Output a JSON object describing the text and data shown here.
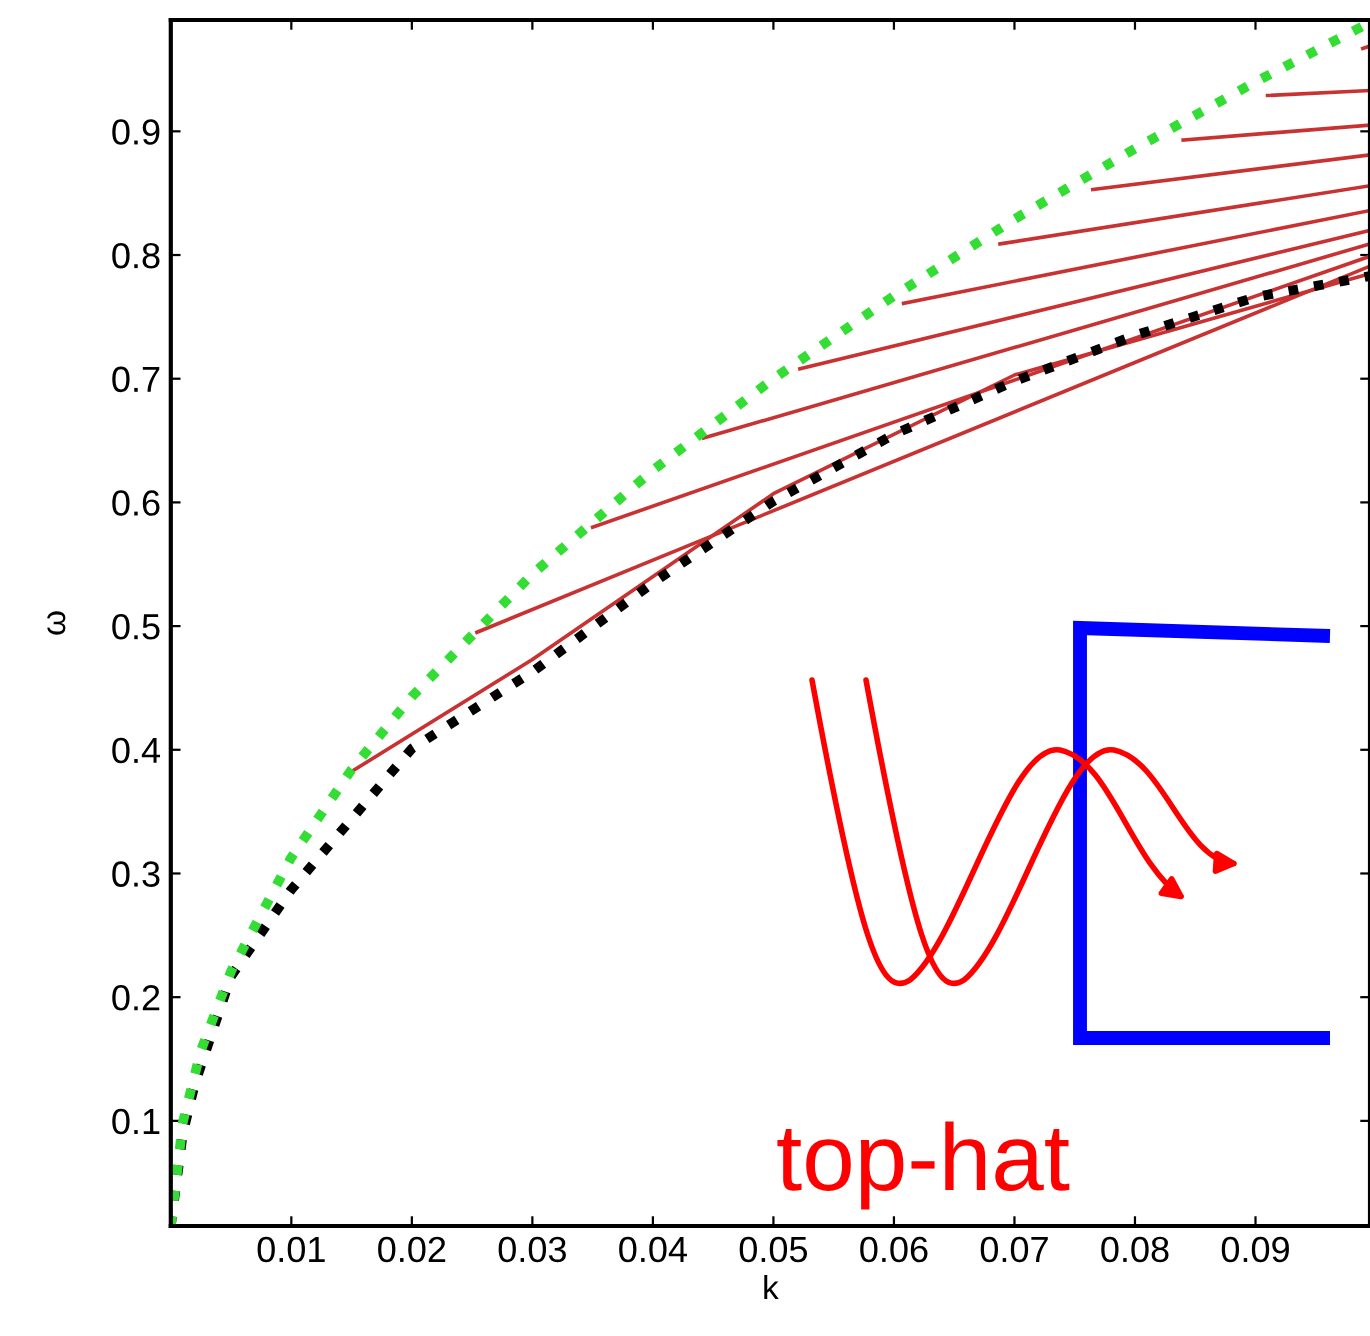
{
  "chart_data": {
    "type": "line",
    "xlabel": "k",
    "ylabel": "ω",
    "xlim": [
      0,
      0.0995
    ],
    "ylim": [
      0.015,
      0.99
    ],
    "xticks": [
      0.01,
      0.02,
      0.03,
      0.04,
      0.05,
      0.06,
      0.07,
      0.08,
      0.09
    ],
    "yticks": [
      0.1,
      0.2,
      0.3,
      0.4,
      0.5,
      0.6,
      0.7,
      0.8,
      0.9
    ],
    "grid": false,
    "legend": false,
    "annotations": [
      "top-hat"
    ],
    "series": [
      {
        "color": "#c83232",
        "line_style": "solid",
        "x": [
          0.0151,
          0.03,
          0.05,
          0.07,
          0.0995
        ],
        "values": [
          0.383,
          0.473,
          0.607,
          0.703,
          0.785
        ]
      },
      {
        "color": "#c83232",
        "line_style": "solid",
        "x": [
          0.0254,
          0.0995
        ],
        "values": [
          0.495,
          0.791
        ]
      },
      {
        "color": "#c83232",
        "line_style": "solid",
        "x": [
          0.035,
          0.0995
        ],
        "values": [
          0.58,
          0.799
        ]
      },
      {
        "color": "#c83232",
        "line_style": "solid",
        "x": [
          0.0442,
          0.0995
        ],
        "values": [
          0.652,
          0.809
        ]
      },
      {
        "color": "#c83232",
        "line_style": "solid",
        "x": [
          0.0522,
          0.0995
        ],
        "values": [
          0.708,
          0.82
        ]
      },
      {
        "color": "#c83232",
        "line_style": "solid",
        "x": [
          0.0608,
          0.0995
        ],
        "values": [
          0.761,
          0.836
        ]
      },
      {
        "color": "#c83232",
        "line_style": "solid",
        "x": [
          0.0688,
          0.0995
        ],
        "values": [
          0.809,
          0.856
        ]
      },
      {
        "color": "#c83232",
        "line_style": "solid",
        "x": [
          0.0765,
          0.0995
        ],
        "values": [
          0.853,
          0.881
        ]
      },
      {
        "color": "#c83232",
        "line_style": "solid",
        "x": [
          0.084,
          0.0995
        ],
        "values": [
          0.893,
          0.905
        ]
      },
      {
        "color": "#c83232",
        "line_style": "solid",
        "x": [
          0.091,
          0.0995
        ],
        "values": [
          0.929,
          0.933
        ]
      },
      {
        "color": "#c83232",
        "line_style": "solid",
        "x": [
          0.0989,
          0.0995
        ],
        "values": [
          0.967,
          0.969
        ]
      },
      {
        "color": "#000000",
        "line_style": "dotted",
        "x": [
          0,
          0.001,
          0.002,
          0.005,
          0.01,
          0.02,
          0.03,
          0.04,
          0.05,
          0.06,
          0.07,
          0.08,
          0.09,
          0.0995
        ],
        "values": [
          0.015,
          0.09,
          0.13,
          0.217,
          0.287,
          0.401,
          0.463,
          0.535,
          0.601,
          0.655,
          0.698,
          0.735,
          0.766,
          0.783
        ]
      },
      {
        "color": "#33dd33",
        "line_style": "dotted",
        "x": [
          0,
          0.001,
          0.0025,
          0.005,
          0.01,
          0.015,
          0.02,
          0.03,
          0.04,
          0.05,
          0.06,
          0.07,
          0.08,
          0.09,
          0.0995
        ],
        "values": [
          0.015,
          0.099,
          0.157,
          0.221,
          0.313,
          0.384,
          0.443,
          0.542,
          0.626,
          0.7,
          0.767,
          0.829,
          0.886,
          0.94,
          0.988
        ]
      }
    ]
  }
}
